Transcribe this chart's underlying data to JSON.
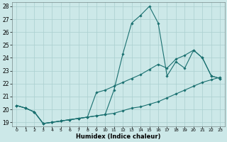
{
  "xlabel": "Humidex (Indice chaleur)",
  "bg_color": "#cce8e8",
  "line_color": "#1a7070",
  "grid_color": "#aacfcf",
  "xlim_min": -0.5,
  "xlim_max": 23.5,
  "ylim_min": 18.7,
  "ylim_max": 28.3,
  "xticks": [
    0,
    1,
    2,
    3,
    4,
    5,
    6,
    7,
    8,
    9,
    10,
    11,
    12,
    13,
    14,
    15,
    16,
    17,
    18,
    19,
    20,
    21,
    22,
    23
  ],
  "yticks": [
    19,
    20,
    21,
    22,
    23,
    24,
    25,
    26,
    27,
    28
  ],
  "line1_x": [
    0,
    1,
    2,
    3,
    4,
    5,
    6,
    7,
    8,
    9,
    10,
    11,
    12,
    13,
    14,
    15,
    16,
    17,
    18,
    19,
    20,
    21,
    22,
    23
  ],
  "line1_y": [
    20.3,
    20.1,
    19.8,
    18.9,
    19.0,
    19.1,
    19.2,
    19.3,
    19.4,
    19.5,
    19.6,
    19.7,
    19.9,
    20.1,
    20.2,
    20.4,
    20.6,
    20.9,
    21.2,
    21.5,
    21.8,
    22.1,
    22.3,
    22.5
  ],
  "line2_x": [
    0,
    1,
    2,
    3,
    4,
    5,
    6,
    7,
    8,
    9,
    10,
    11,
    12,
    13,
    14,
    15,
    16,
    17,
    18,
    19,
    20,
    21,
    22,
    23
  ],
  "line2_y": [
    20.3,
    20.1,
    19.8,
    18.9,
    19.0,
    19.1,
    19.2,
    19.3,
    19.4,
    19.5,
    19.6,
    21.5,
    24.3,
    26.7,
    27.3,
    28.0,
    26.7,
    22.6,
    23.7,
    23.2,
    24.6,
    24.0,
    22.6,
    22.4
  ],
  "line3_x": [
    0,
    1,
    2,
    3,
    4,
    5,
    6,
    7,
    8,
    9,
    10,
    11,
    12,
    13,
    14,
    15,
    16,
    17,
    18,
    19,
    20,
    21,
    22,
    23
  ],
  "line3_y": [
    20.3,
    20.1,
    19.8,
    18.9,
    19.0,
    19.1,
    19.2,
    19.3,
    19.4,
    21.3,
    21.5,
    21.8,
    22.1,
    22.4,
    22.7,
    23.1,
    23.5,
    23.2,
    23.9,
    24.2,
    24.6,
    24.0,
    22.6,
    22.4
  ]
}
